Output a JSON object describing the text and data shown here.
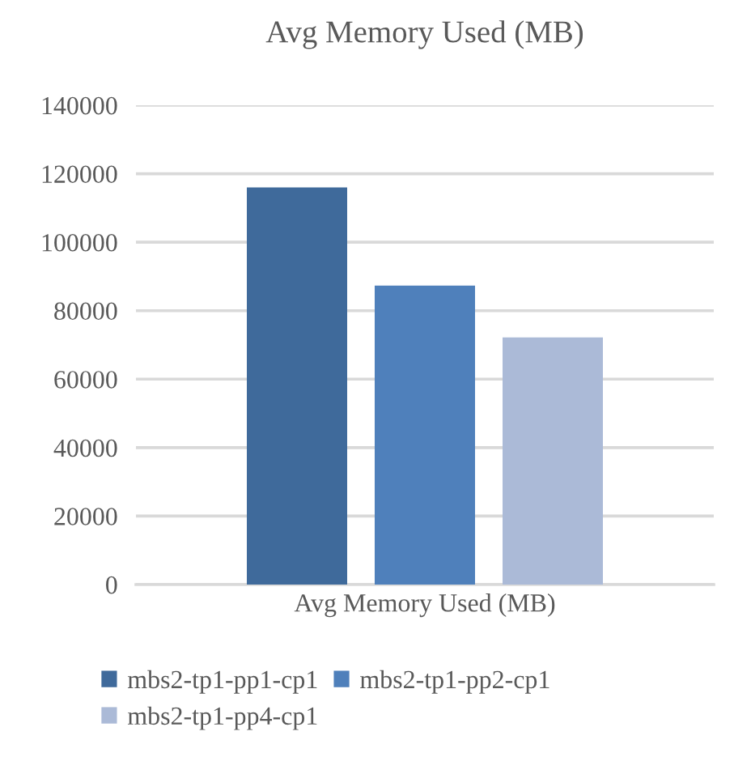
{
  "chart_data": {
    "type": "bar",
    "title": "Avg Memory Used (MB)",
    "xlabel": "Avg Memory Used (MB)",
    "categories": [
      null,
      null,
      null
    ],
    "series": [
      {
        "name": "mbs2-tp1-pp1-cp1",
        "color": "#3f6a9b",
        "values": [
          116000,
          null,
          null
        ]
      },
      {
        "name": "mbs2-tp1-pp2-cp1",
        "color": "#4f80bb",
        "values": [
          null,
          87300,
          null
        ]
      },
      {
        "name": "mbs2-tp1-pp4-cp1",
        "color": "#abbad7",
        "values": [
          null,
          null,
          72200
        ]
      }
    ],
    "ylim": [
      0,
      140000
    ],
    "yticks": [
      0,
      20000,
      40000,
      60000,
      80000,
      100000,
      120000,
      140000
    ],
    "grid": "y",
    "legend": "bottom"
  }
}
